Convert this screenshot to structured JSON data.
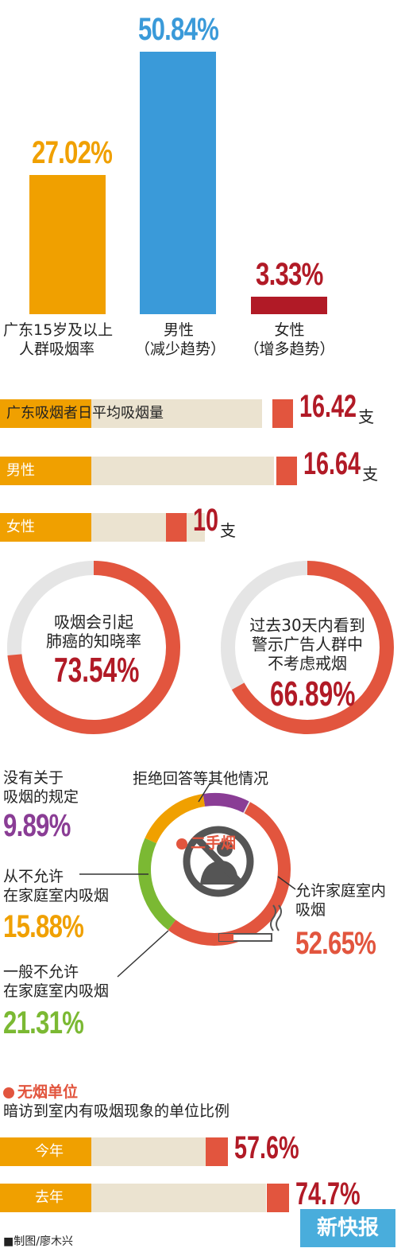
{
  "colors": {
    "orange": "#f0a000",
    "blue": "#3a9ad9",
    "darkred": "#b11a26",
    "coral": "#e2553e",
    "beige": "#ebe3d0",
    "purple": "#8a3d95",
    "green": "#7bb933",
    "gray": "#e5e5e5"
  },
  "chart_data": [
    {
      "type": "bar",
      "categories": [
        "广东15岁及以上人群吸烟率",
        "男性（减少趋势）",
        "女性（增多趋势）"
      ],
      "values": [
        27.02,
        50.84,
        3.33
      ],
      "value_labels": [
        "27.02%",
        "50.84%",
        "3.33%"
      ],
      "ylim": [
        0,
        55
      ]
    },
    {
      "type": "bar",
      "orientation": "horizontal",
      "categories": [
        "广东吸烟者日平均吸烟量",
        "男性",
        "女性"
      ],
      "values": [
        16.42,
        16.64,
        10
      ],
      "value_labels": [
        "16.42",
        "16.64",
        "10"
      ],
      "unit": "支",
      "xlim": [
        0,
        18
      ]
    },
    {
      "type": "pie",
      "donut": true,
      "label": "吸烟会引起肺癌的知晓率",
      "value": 73.54,
      "value_label": "73.54%"
    },
    {
      "type": "pie",
      "donut": true,
      "label": "过去30天内看到警示广告人群中不考虑戒烟",
      "value": 66.89,
      "value_label": "66.89%"
    },
    {
      "type": "pie",
      "donut": true,
      "title": "二手烟",
      "categories": [
        "允许家庭室内吸烟",
        "一般不允许在家庭室内吸烟",
        "从不允许在家庭室内吸烟",
        "没有关于吸烟的规定",
        "拒绝回答等其他情况"
      ],
      "values": [
        52.65,
        21.31,
        15.88,
        9.89,
        0.27
      ],
      "value_labels": [
        "52.65%",
        "21.31%",
        "15.88%",
        "9.89%",
        ""
      ],
      "colors": [
        "#e2553e",
        "#7bb933",
        "#f0a000",
        "#8a3d95",
        "#e5e5e5"
      ]
    },
    {
      "type": "bar",
      "orientation": "horizontal",
      "title": "无烟单位",
      "subtitle": "暗访到室内有吸烟现象的单位比例",
      "categories": [
        "今年",
        "去年"
      ],
      "values": [
        57.6,
        74.7
      ],
      "value_labels": [
        "57.6%",
        "74.7%"
      ],
      "xlim": [
        0,
        100
      ]
    }
  ],
  "top": {
    "bars": [
      {
        "pct": "27.02%",
        "label1": "广东15岁及以上",
        "label2": "人群吸烟率"
      },
      {
        "pct": "50.84%",
        "label1": "男性",
        "label2": "（减少趋势）"
      },
      {
        "pct": "3.33%",
        "label1": "女性",
        "label2": "（增多趋势）"
      }
    ]
  },
  "daily": {
    "rows": [
      {
        "label": "广东吸烟者日平均吸烟量",
        "value": "16.42",
        "unit": "支"
      },
      {
        "label": "男性",
        "value": "16.64",
        "unit": "支"
      },
      {
        "label": "女性",
        "value": "10",
        "unit": "支"
      }
    ]
  },
  "rings": {
    "left": {
      "line1": "吸烟会引起",
      "line2": "肺癌的知晓率",
      "value": "73.54%"
    },
    "right": {
      "line1": "过去30天内看到",
      "line2": "警示广告人群中",
      "line3": "不考虑戒烟",
      "value": "66.89%"
    }
  },
  "secondhand": {
    "title": "二手烟",
    "refuse": "拒绝回答等其他情况",
    "none_rule": {
      "line1": "没有关于",
      "line2": "吸烟的规定",
      "value": "9.89%"
    },
    "never": {
      "line1": "从不允许",
      "line2": "在家庭室内吸烟",
      "value": "15.88%"
    },
    "usually_not": {
      "line1": "一般不允许",
      "line2": "在家庭室内吸烟",
      "value": "21.31%"
    },
    "allow": {
      "line1": "允许家庭室内",
      "line2": "吸烟",
      "value": "52.65%"
    }
  },
  "units": {
    "title": "无烟单位",
    "subtitle": "暗访到室内有吸烟现象的单位比例",
    "rows": [
      {
        "label": "今年",
        "value": "57.6%"
      },
      {
        "label": "去年",
        "value": "74.7%"
      }
    ]
  },
  "credit": "■制图/廖木兴",
  "watermark": "新快报"
}
